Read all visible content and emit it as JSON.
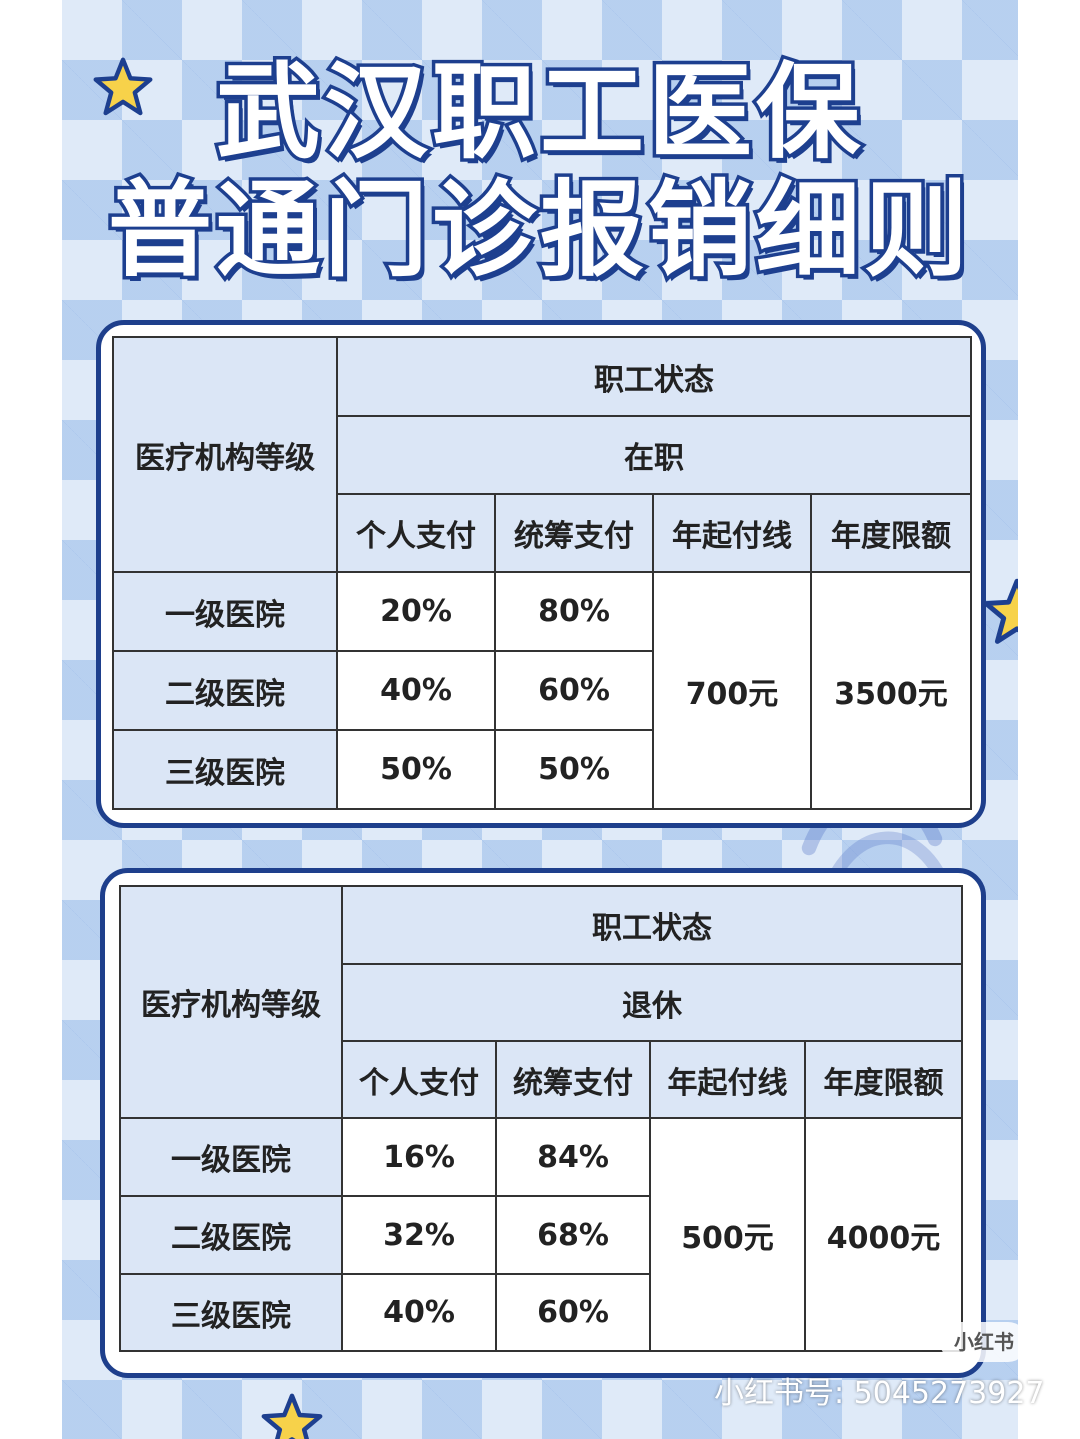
{
  "title": {
    "line1": "武汉职工医保",
    "line2": "普通门诊报销细则"
  },
  "colors": {
    "border": "#1e3f8c",
    "header_bg": "#dbe6f6",
    "background": "#dfeaf8",
    "star": "#f7d24a"
  },
  "tables": [
    {
      "row_header": "医疗机构等级",
      "status_label": "职工状态",
      "status": "在职",
      "columns": [
        "个人支付",
        "统筹支付",
        "年起付线",
        "年度限额"
      ],
      "rows": [
        {
          "level": "一级医院",
          "personal": "20%",
          "pooled": "80%"
        },
        {
          "level": "二级医院",
          "personal": "40%",
          "pooled": "60%"
        },
        {
          "level": "三级医院",
          "personal": "50%",
          "pooled": "50%"
        }
      ],
      "deductible": "700元",
      "annual_limit": "3500元"
    },
    {
      "row_header": "医疗机构等级",
      "status_label": "职工状态",
      "status": "退休",
      "columns": [
        "个人支付",
        "统筹支付",
        "年起付线",
        "年度限额"
      ],
      "rows": [
        {
          "level": "一级医院",
          "personal": "16%",
          "pooled": "84%"
        },
        {
          "level": "二级医院",
          "personal": "32%",
          "pooled": "68%"
        },
        {
          "level": "三级医院",
          "personal": "40%",
          "pooled": "60%"
        }
      ],
      "deductible": "500元",
      "annual_limit": "4000元"
    }
  ],
  "watermark": {
    "badge": "小红书",
    "account": "小红书号: 5045273927"
  }
}
